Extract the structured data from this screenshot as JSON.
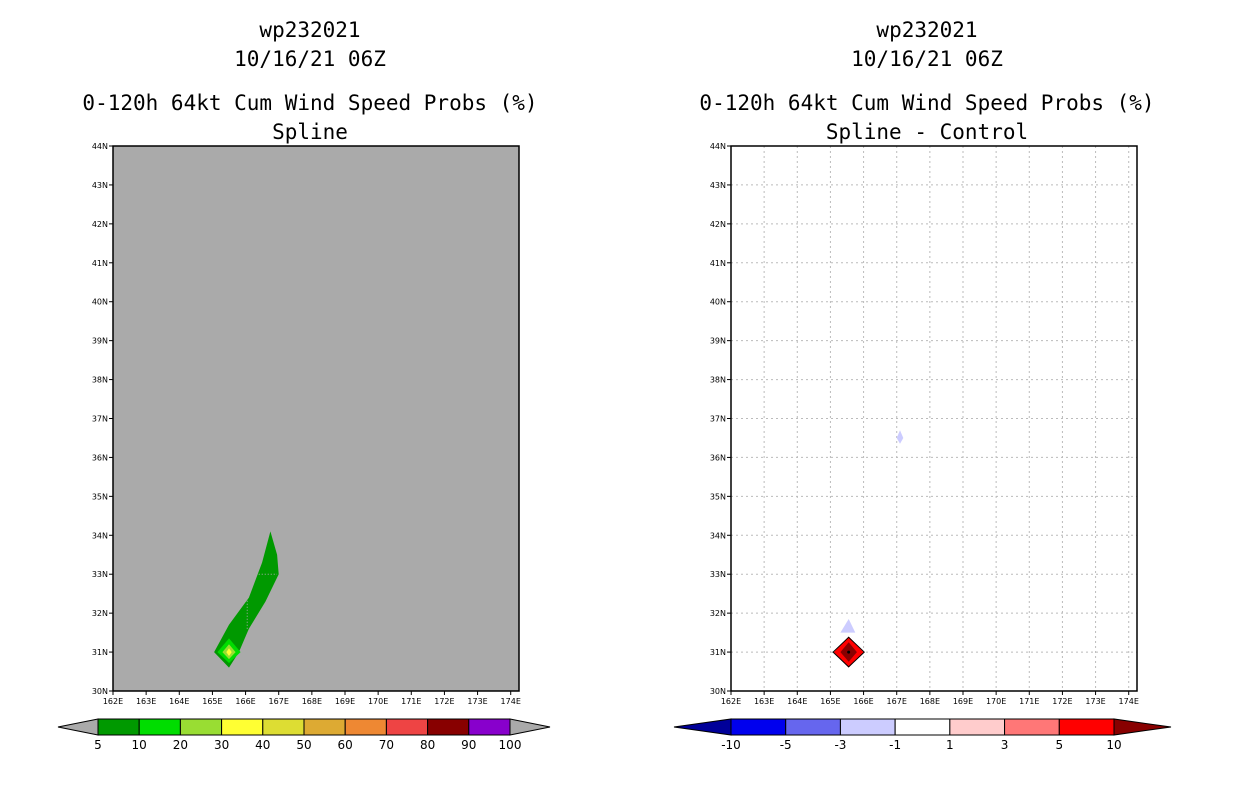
{
  "chart_data": [
    {
      "type": "heatmap",
      "title_lines": [
        "wp232021",
        "10/16/21 06Z",
        "0-120h 64kt Cum Wind Speed Probs (%)",
        "Spline"
      ],
      "x_ticks": [
        "162E",
        "163E",
        "164E",
        "165E",
        "166E",
        "167E",
        "168E",
        "169E",
        "170E",
        "171E",
        "172E",
        "173E",
        "174E"
      ],
      "y_ticks": [
        "30N",
        "31N",
        "32N",
        "33N",
        "34N",
        "35N",
        "36N",
        "37N",
        "38N",
        "39N",
        "40N",
        "41N",
        "42N",
        "43N",
        "44N"
      ],
      "xlim": [
        162,
        174.25
      ],
      "ylim": [
        30,
        44
      ],
      "background_color": "#aaaaaa",
      "grid": false,
      "colorbar": {
        "labels": [
          "5",
          "10",
          "20",
          "30",
          "40",
          "50",
          "60",
          "70",
          "80",
          "90",
          "100"
        ],
        "colors": [
          "#009900",
          "#00dd00",
          "#99dd33",
          "#ffff33",
          "#dddd33",
          "#ddaa33",
          "#ee8833",
          "#ee4444",
          "#880000",
          "#8800cc"
        ],
        "low_arrow_color": "#aaaaaa",
        "high_arrow_color": "#aaaaaa"
      },
      "regions": [
        {
          "level": "5-10",
          "color": "#009900",
          "points": [
            [
              165.5,
              30.6
            ],
            [
              165.05,
              31.0
            ],
            [
              165.5,
              31.7
            ],
            [
              166.1,
              32.4
            ],
            [
              166.5,
              33.3
            ],
            [
              166.75,
              34.1
            ],
            [
              166.95,
              33.5
            ],
            [
              167.0,
              33.0
            ],
            [
              166.6,
              32.3
            ],
            [
              166.1,
              31.6
            ],
            [
              165.8,
              31.0
            ]
          ]
        },
        {
          "level": "10-20",
          "color": "#00dd00",
          "points": [
            [
              165.5,
              30.72
            ],
            [
              165.15,
              31.0
            ],
            [
              165.5,
              31.35
            ],
            [
              165.85,
              31.0
            ]
          ]
        },
        {
          "level": "20-30",
          "color": "#99dd33",
          "points": [
            [
              165.5,
              30.82
            ],
            [
              165.3,
              31.0
            ],
            [
              165.5,
              31.2
            ],
            [
              165.7,
              31.0
            ]
          ]
        },
        {
          "level": "30-40",
          "color": "#ffff33",
          "points": [
            [
              165.5,
              30.9
            ],
            [
              165.42,
              31.0
            ],
            [
              165.5,
              31.1
            ],
            [
              165.58,
              31.0
            ]
          ]
        }
      ]
    },
    {
      "type": "heatmap",
      "title_lines": [
        "wp232021",
        "10/16/21 06Z",
        "0-120h 64kt Cum Wind Speed Probs (%)",
        "Spline - Control"
      ],
      "x_ticks": [
        "162E",
        "163E",
        "164E",
        "165E",
        "166E",
        "167E",
        "168E",
        "169E",
        "170E",
        "171E",
        "172E",
        "173E",
        "174E"
      ],
      "y_ticks": [
        "30N",
        "31N",
        "32N",
        "33N",
        "34N",
        "35N",
        "36N",
        "37N",
        "38N",
        "39N",
        "40N",
        "41N",
        "42N",
        "43N",
        "44N"
      ],
      "xlim": [
        162,
        174.25
      ],
      "ylim": [
        30,
        44
      ],
      "background_color": "#ffffff",
      "grid": true,
      "colorbar": {
        "labels": [
          "-10",
          "-5",
          "-3",
          "-1",
          "1",
          "3",
          "5",
          "10"
        ],
        "colors": [
          "#0000ee",
          "#6666ee",
          "#ccccff",
          "#ffffff",
          "#ffcccc",
          "#ff7777",
          "#ff0000"
        ],
        "low_arrow_color": "#000099",
        "high_arrow_color": "#880000"
      },
      "regions": [
        {
          "level": "-3 to -1",
          "color": "#ccccff",
          "points": [
            [
              165.55,
              31.5
            ],
            [
              165.3,
              31.5
            ],
            [
              165.55,
              31.85
            ],
            [
              165.75,
              31.5
            ]
          ]
        },
        {
          "level": "-3 to -1",
          "color": "#ccccff",
          "points": [
            [
              167.1,
              36.35
            ],
            [
              167.0,
              36.5
            ],
            [
              167.1,
              36.7
            ],
            [
              167.2,
              36.5
            ]
          ]
        },
        {
          "level": "5-10",
          "color": "#ff0000",
          "points": [
            [
              165.55,
              30.6
            ],
            [
              165.1,
              31.0
            ],
            [
              165.55,
              31.4
            ],
            [
              166.0,
              31.0
            ]
          ]
        },
        {
          "level": ">10",
          "color": "#880000",
          "points": [
            [
              165.55,
              30.75
            ],
            [
              165.3,
              31.0
            ],
            [
              165.55,
              31.25
            ],
            [
              165.8,
              31.0
            ]
          ]
        }
      ]
    }
  ]
}
